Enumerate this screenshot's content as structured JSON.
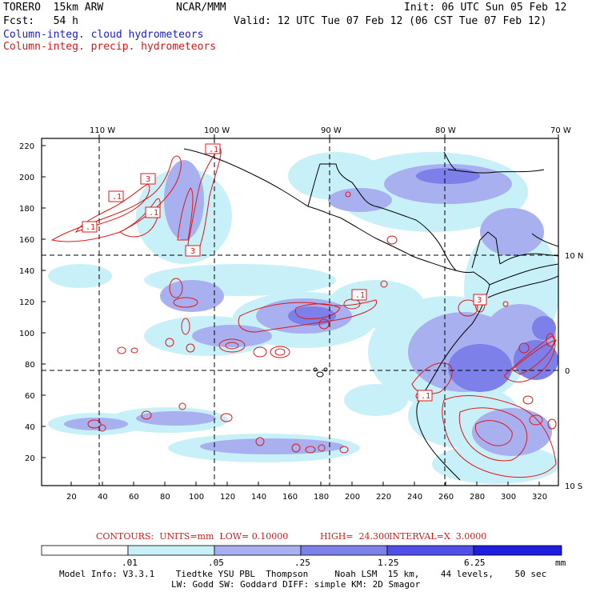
{
  "header": {
    "model": "TORERO  15km ARW",
    "center": "NCAR/MMM",
    "init": "Init: 06 UTC Sun 05 Feb 12",
    "fcst": "Fcst:   54 h",
    "valid": "Valid: 12 UTC Tue 07 Feb 12 (06 CST Tue 07 Feb 12)",
    "field1": "Column-integ. cloud hydrometeors",
    "field2": "Column-integ. precip. hydrometeors"
  },
  "map": {
    "top_lon_labels": [
      "110 W",
      "100 W",
      "90 W",
      "80 W",
      "70 W"
    ],
    "right_lat_labels": [
      "10 N",
      "0",
      "10 S"
    ],
    "y_ticks": [
      "220",
      "200",
      "180",
      "160",
      "140",
      "120",
      "100",
      "80",
      "60",
      "40",
      "20"
    ],
    "x_ticks": [
      "20",
      "40",
      "60",
      "80",
      "100",
      "120",
      "140",
      "160",
      "180",
      "200",
      "220",
      "240",
      "260",
      "280",
      "300",
      "320"
    ],
    "contour_labels": [
      ".1",
      "3",
      ".1",
      ".1",
      ".1",
      "3",
      ".1",
      "3",
      ".1"
    ],
    "colors": {
      "cloud_light": "#c8f0f8",
      "cloud_mid": "#a8b0f0",
      "cloud_dark": "#7c80e8",
      "precip_contour": "#e01818",
      "coast": "#000000"
    }
  },
  "contours_info": {
    "units": "CONTOURS:  UNITS=mm  LOW= 0.10000",
    "high": "HIGH=  24.300",
    "interval": "INTERVAL=X  3.0000"
  },
  "colorbar": {
    "labels": [
      ".01",
      ".05",
      ".25",
      "1.25",
      "6.25",
      "mm"
    ],
    "colors": [
      "#ffffff",
      "#c8f0f8",
      "#a8b0f0",
      "#7c80e8",
      "#5050e8",
      "#1e1ee0"
    ]
  },
  "footer": {
    "line1": "Model Info: V3.3.1    Tiedtke YSU PBL  Thompson     Noah LSM  15 km,    44 levels,    50 sec",
    "line2": "LW: Godd SW: Goddard DIFF: simple KM: 2D Smagor"
  }
}
